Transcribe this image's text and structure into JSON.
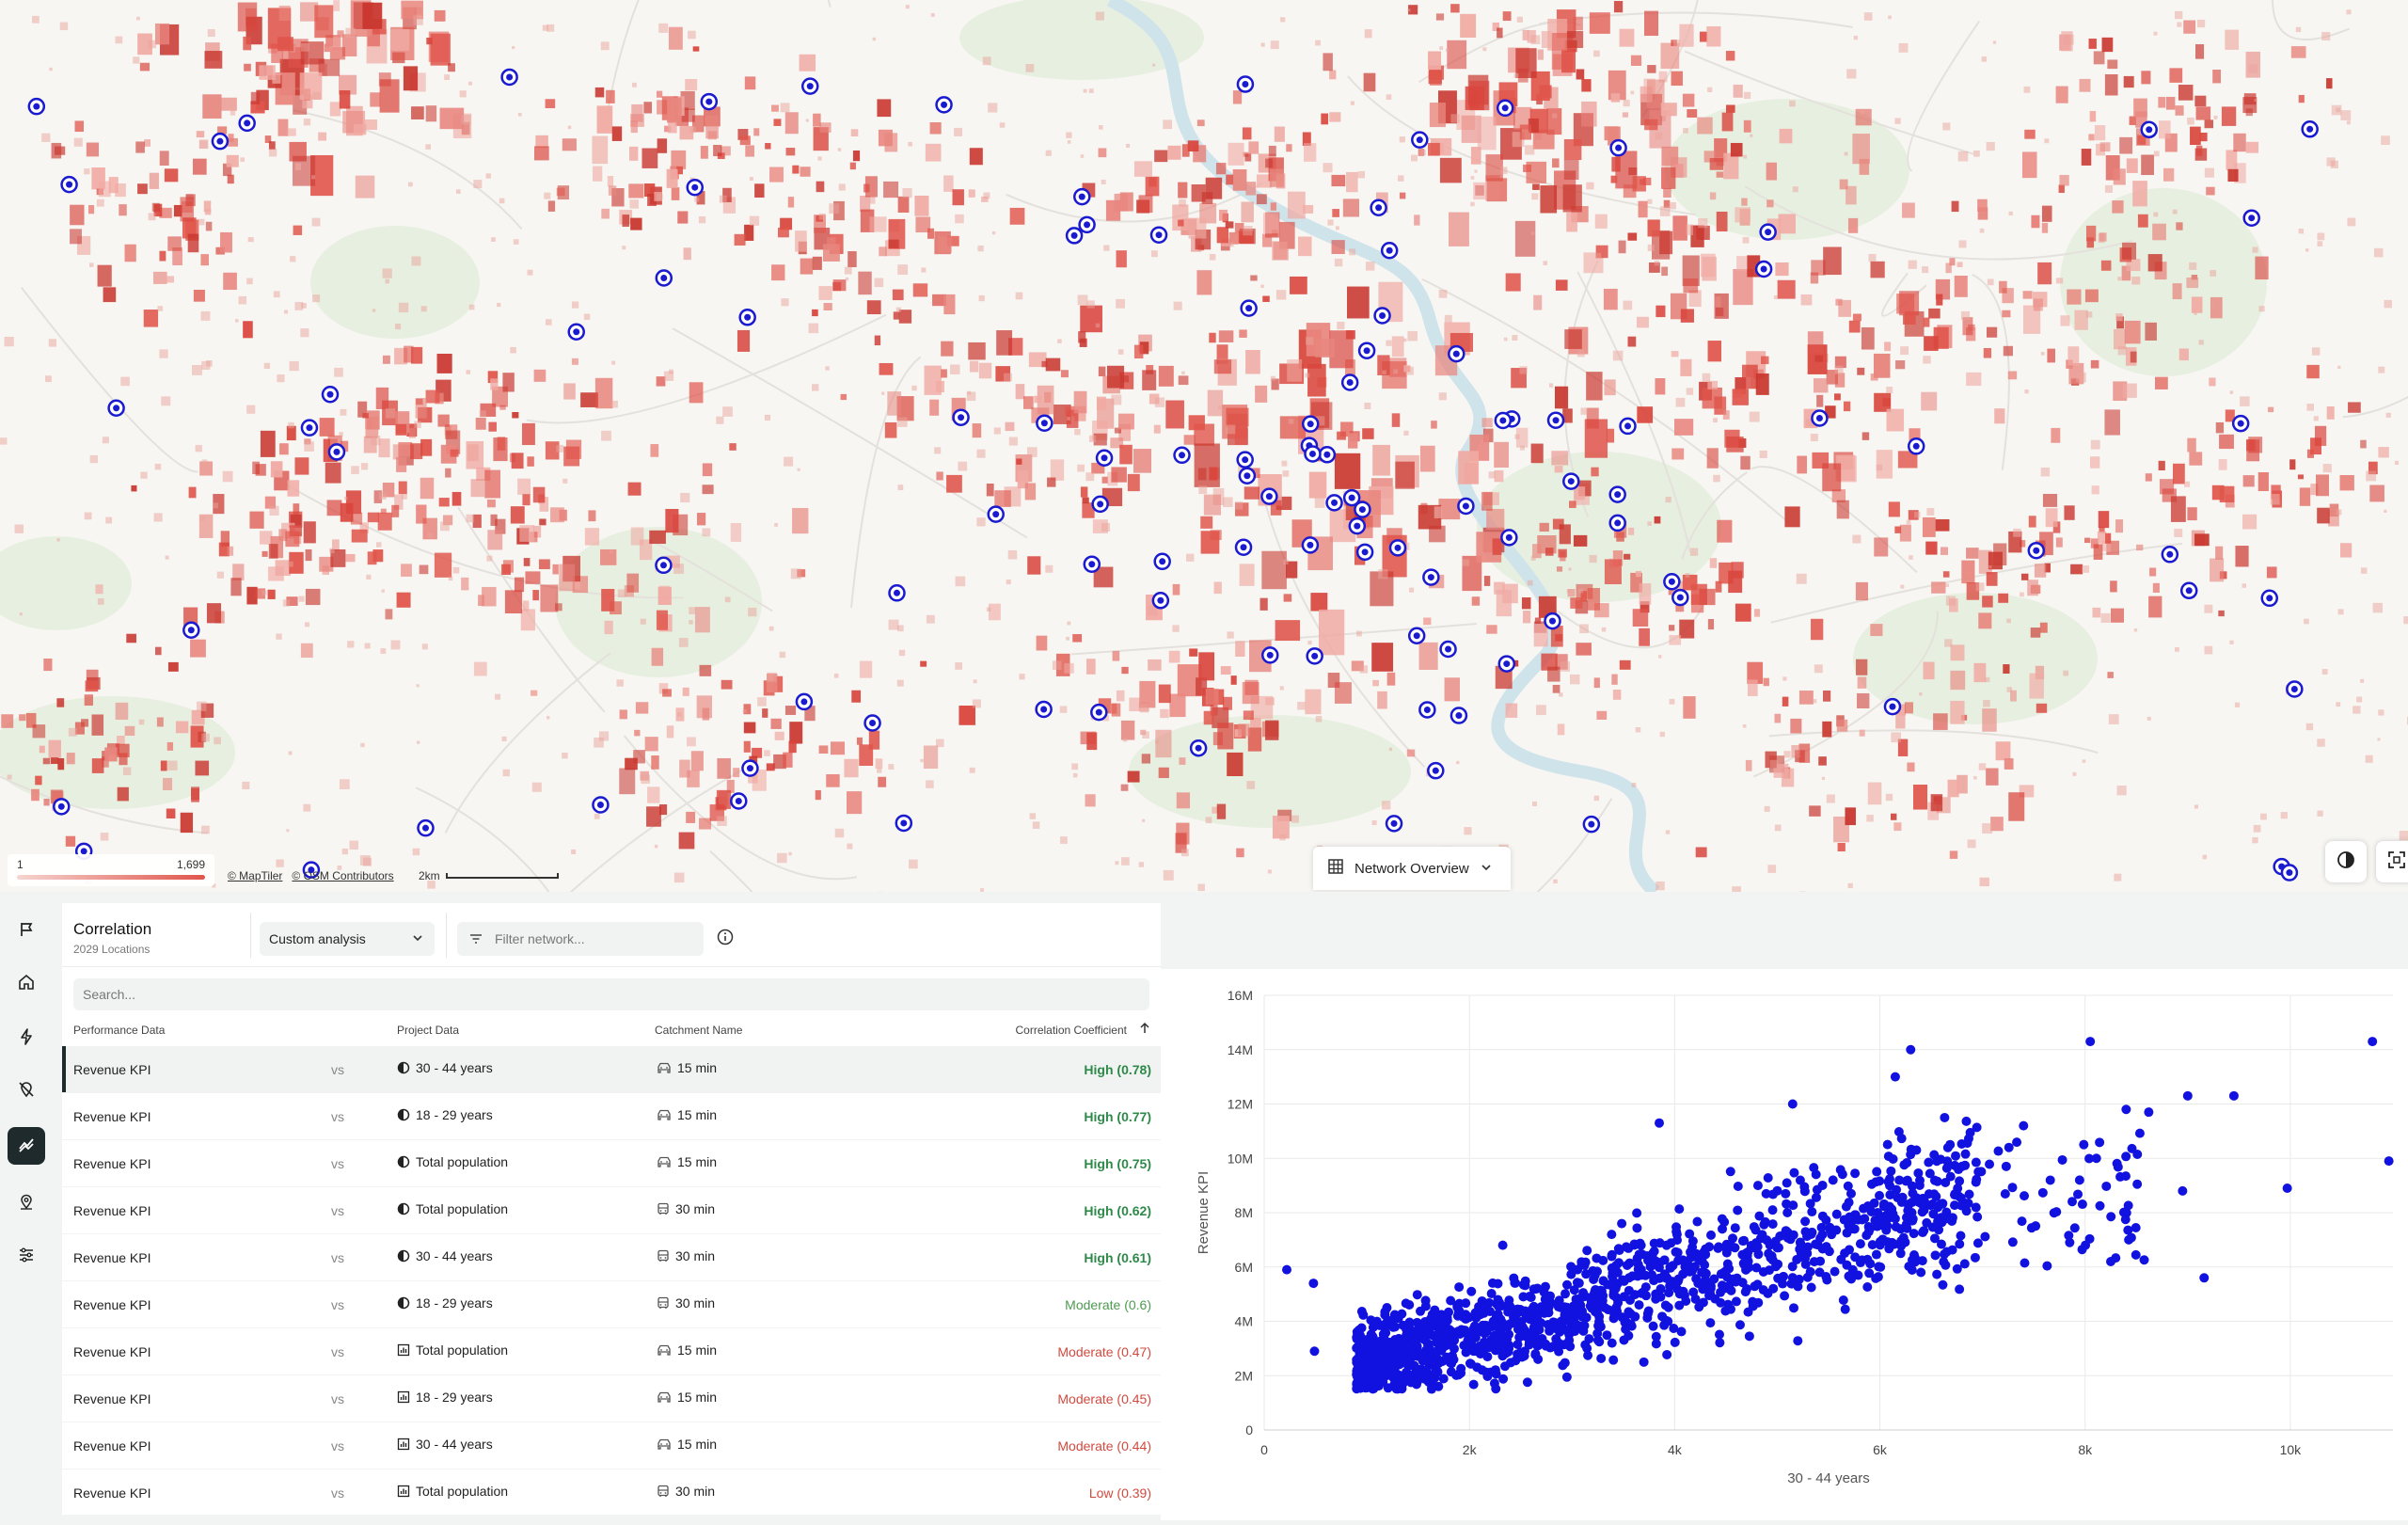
{
  "map": {
    "legend": {
      "min": "1",
      "max": "1,699"
    },
    "attribution": [
      "© MapTiler",
      "© OSM Contributors"
    ],
    "scale_label": "2km",
    "network_overview_label": "Network Overview"
  },
  "panel": {
    "title": "Correlation",
    "subtitle": "2029 Locations",
    "analysis_select": "Custom analysis",
    "filter_placeholder": "Filter network...",
    "search_placeholder": "Search...",
    "columns": {
      "performance": "Performance Data",
      "project": "Project Data",
      "catchment": "Catchment Name",
      "coefficient": "Correlation Coefficient"
    },
    "rows": [
      {
        "performance": "Revenue KPI",
        "vs": "vs",
        "project": "30 - 44 years",
        "project_icon": "half-circle-icon",
        "catchment": "15 min",
        "catchment_icon": "car-icon",
        "coefficient": "High (0.78)",
        "level": "high"
      },
      {
        "performance": "Revenue KPI",
        "vs": "vs",
        "project": "18 - 29 years",
        "project_icon": "half-circle-icon",
        "catchment": "15 min",
        "catchment_icon": "car-icon",
        "coefficient": "High (0.77)",
        "level": "high"
      },
      {
        "performance": "Revenue KPI",
        "vs": "vs",
        "project": "Total population",
        "project_icon": "half-circle-icon",
        "catchment": "15 min",
        "catchment_icon": "car-icon",
        "coefficient": "High (0.75)",
        "level": "high"
      },
      {
        "performance": "Revenue KPI",
        "vs": "vs",
        "project": "Total population",
        "project_icon": "half-circle-icon",
        "catchment": "30 min",
        "catchment_icon": "bus-icon",
        "coefficient": "High (0.62)",
        "level": "high"
      },
      {
        "performance": "Revenue KPI",
        "vs": "vs",
        "project": "30 - 44 years",
        "project_icon": "half-circle-icon",
        "catchment": "30 min",
        "catchment_icon": "bus-icon",
        "coefficient": "High (0.61)",
        "level": "high"
      },
      {
        "performance": "Revenue KPI",
        "vs": "vs",
        "project": "18 - 29 years",
        "project_icon": "half-circle-icon",
        "catchment": "30 min",
        "catchment_icon": "bus-icon",
        "coefficient": "Moderate (0.6)",
        "level": "moderate-green"
      },
      {
        "performance": "Revenue KPI",
        "vs": "vs",
        "project": "Total population",
        "project_icon": "bar-chart-icon",
        "catchment": "15 min",
        "catchment_icon": "car-icon",
        "coefficient": "Moderate (0.47)",
        "level": "moderate-red"
      },
      {
        "performance": "Revenue KPI",
        "vs": "vs",
        "project": "18 - 29 years",
        "project_icon": "bar-chart-icon",
        "catchment": "15 min",
        "catchment_icon": "car-icon",
        "coefficient": "Moderate (0.45)",
        "level": "moderate-red"
      },
      {
        "performance": "Revenue KPI",
        "vs": "vs",
        "project": "30 - 44 years",
        "project_icon": "bar-chart-icon",
        "catchment": "15 min",
        "catchment_icon": "car-icon",
        "coefficient": "Moderate (0.44)",
        "level": "moderate-red"
      },
      {
        "performance": "Revenue KPI",
        "vs": "vs",
        "project": "Total population",
        "project_icon": "bar-chart-icon",
        "catchment": "30 min",
        "catchment_icon": "bus-icon",
        "coefficient": "Low (0.39)",
        "level": "low"
      }
    ]
  },
  "colors": {
    "high": "#2e8a49",
    "moderate_green": "#4d9a51",
    "moderate_red": "#d2493f",
    "low": "#d2493f",
    "points": "#1212e0",
    "density": "#e0554b"
  },
  "sidebar": {
    "icons": [
      "flag-icon",
      "home-icon",
      "bolt-icon",
      "location-off-icon",
      "correlation-icon",
      "location-search-icon",
      "sliders-icon"
    ],
    "active": "correlation-icon"
  },
  "chart_data": {
    "type": "scatter",
    "xlabel": "30 - 44 years",
    "ylabel": "Revenue KPI",
    "xlim": [
      0,
      11000
    ],
    "ylim": [
      0,
      16000000
    ],
    "x_ticks": [
      "0",
      "2k",
      "4k",
      "6k",
      "8k",
      "10k"
    ],
    "y_ticks": [
      "0",
      "2M",
      "4M",
      "6M",
      "8M",
      "10M",
      "12M",
      "14M",
      "16M"
    ],
    "grid": true,
    "trend": {
      "x_min": 900,
      "x_max": 7000,
      "slope": 1050,
      "intercept": 1300000,
      "spread": 1100000,
      "count": 1300
    },
    "outliers": [
      [
        220,
        5900000
      ],
      [
        480,
        5400000
      ],
      [
        490,
        2900000
      ],
      [
        6300,
        14000000
      ],
      [
        8050,
        14300000
      ],
      [
        10800,
        14300000
      ],
      [
        9000,
        12300000
      ],
      [
        9450,
        12300000
      ],
      [
        10960,
        9900000
      ],
      [
        9970,
        8900000
      ],
      [
        8950,
        8800000
      ],
      [
        9160,
        5600000
      ],
      [
        8400,
        11800000
      ],
      [
        8620,
        11700000
      ],
      [
        6150,
        13000000
      ],
      [
        7400,
        11200000
      ],
      [
        5150,
        12000000
      ],
      [
        3850,
        11300000
      ],
      [
        8110,
        10000000
      ],
      [
        8250,
        6200000
      ],
      [
        7850,
        6900000
      ],
      [
        6400,
        5800000
      ],
      [
        3700,
        2500000
      ],
      [
        1350,
        1700000
      ],
      [
        1040,
        2200000
      ]
    ]
  }
}
